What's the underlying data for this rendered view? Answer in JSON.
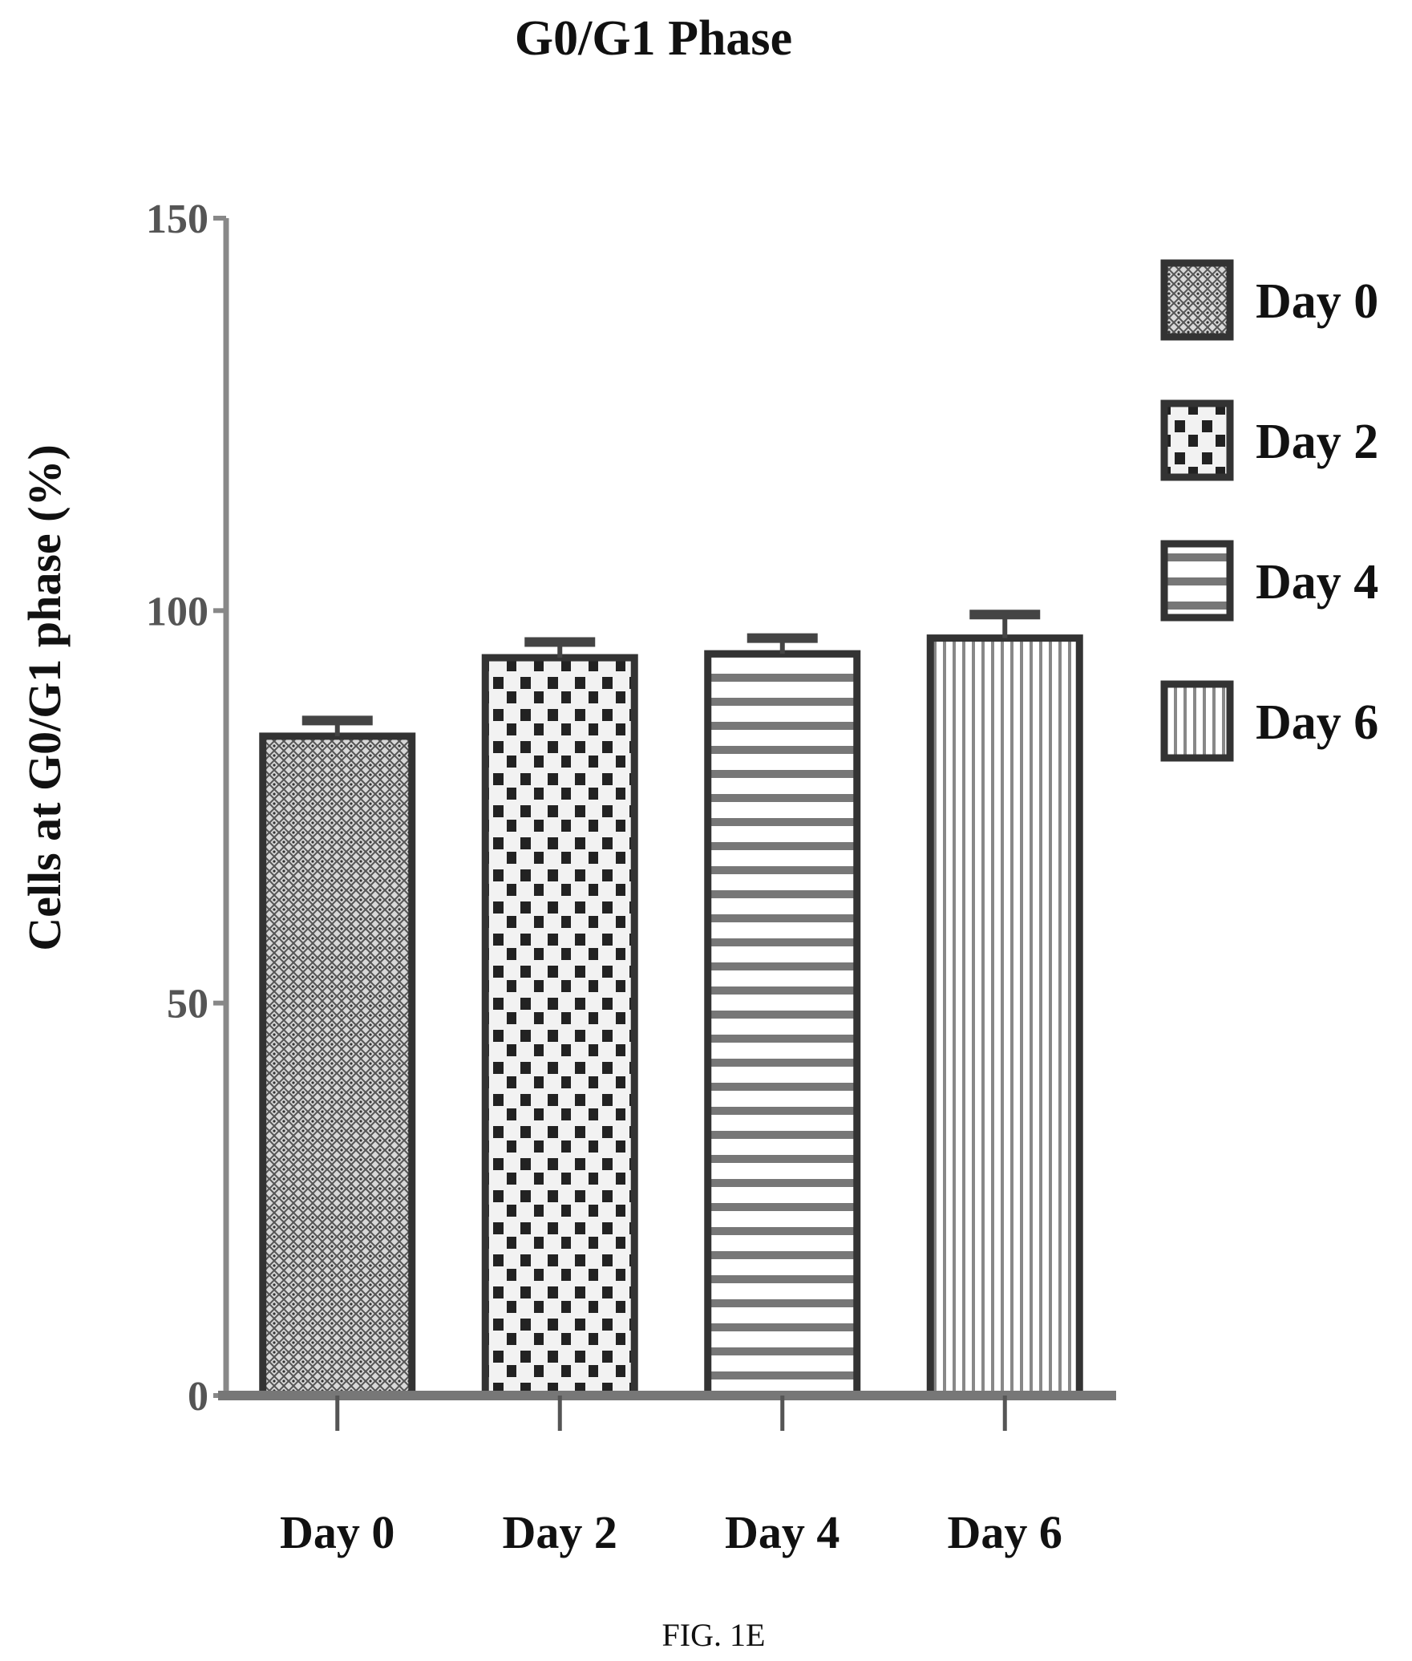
{
  "chart_data": {
    "type": "bar",
    "title": "G0/G1 Phase",
    "xlabel": "",
    "ylabel": "Cells at G0/G1 phase (%)",
    "categories": [
      "Day 0",
      "Day 2",
      "Day 4",
      "Day 6"
    ],
    "series": [
      {
        "values": [
          84,
          94,
          94.5,
          96.5
        ],
        "error": [
          2,
          2,
          2,
          3
        ]
      }
    ],
    "ylim": [
      0,
      150
    ],
    "yticks": [
      "0",
      "50",
      "100",
      "150"
    ],
    "legend": {
      "placement": "right",
      "entries": [
        "Day 0",
        "Day 2",
        "Day 4",
        "Day 6"
      ]
    },
    "patterns": [
      "dense-weave",
      "checker",
      "horizontal-stripes",
      "vertical-stripes"
    ],
    "grid": false
  },
  "caption": "FIG. 1E"
}
